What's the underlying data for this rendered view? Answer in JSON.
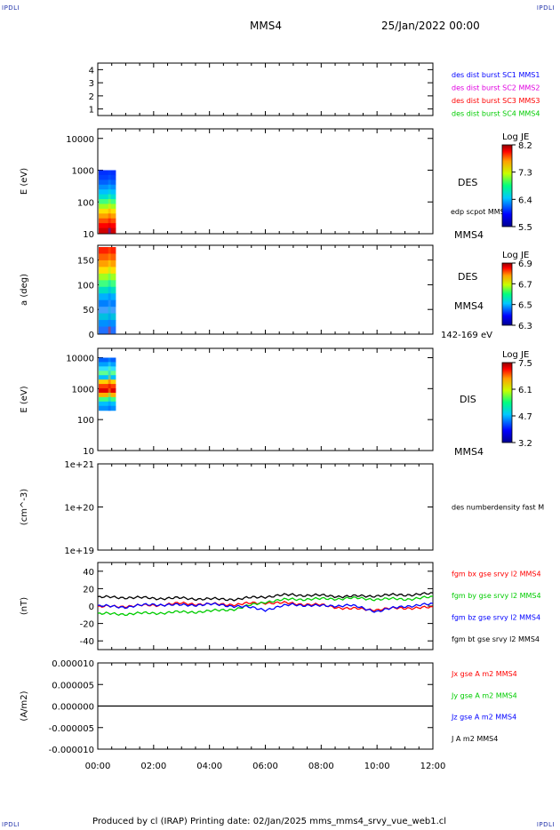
{
  "corner_tag": "IPDLI",
  "header": {
    "spacecraft": "MMS4",
    "datetime": "25/Jan/2022 00:00"
  },
  "footer": {
    "text": "Produced by cl (IRAP)   Printing date: 02/Jan/2025   mms_mms4_srvy_vue_web1.cl"
  },
  "colors": {
    "blue": "#0000ff",
    "magenta": "#e000e0",
    "red": "#ff0000",
    "green": "#00cc00",
    "black": "#000000"
  },
  "chart_data": [
    {
      "type": "line",
      "id": "p1",
      "ylim": [
        0.5,
        4.5
      ],
      "yticks": [
        "1",
        "2",
        "3",
        "4"
      ],
      "legend": [
        {
          "text": "des dist burst SC1 MMS1",
          "color": "#0000ff"
        },
        {
          "text": "des dist burst SC2 MMS2",
          "color": "#e000e0"
        },
        {
          "text": "des dist burst SC3 MMS3",
          "color": "#ff0000"
        },
        {
          "text": "des dist burst SC4 MMS4",
          "color": "#00cc00"
        }
      ]
    },
    {
      "type": "heatmap",
      "id": "p2",
      "ylabel": "E (eV)",
      "scale": "log",
      "ylim": [
        10,
        20000
      ],
      "yticks": [
        "10000",
        "1000",
        "100",
        "10"
      ],
      "side_labels": [
        "DES",
        "edp scpot MMS4",
        "MMS4"
      ],
      "colorbar": {
        "title": "Log JE",
        "ticks": [
          "8.2",
          "7.3",
          "6.4",
          "5.5"
        ]
      },
      "patch": {
        "time_h": [
          0,
          0.65
        ],
        "energy_ev": [
          10,
          1000
        ]
      }
    },
    {
      "type": "heatmap",
      "id": "p3",
      "ylabel": "a (deg)",
      "ylim": [
        0,
        180
      ],
      "yticks": [
        "150",
        "100",
        "50",
        "0"
      ],
      "side_labels": [
        "DES",
        "MMS4",
        "142-169 eV"
      ],
      "colorbar": {
        "title": "Log JE",
        "ticks": [
          "6.9",
          "6.7",
          "6.5",
          "6.3"
        ]
      },
      "patch": {
        "time_h": [
          0,
          0.65
        ],
        "pitch_deg": [
          0,
          180
        ]
      }
    },
    {
      "type": "heatmap",
      "id": "p4",
      "ylabel": "E (eV)",
      "scale": "log",
      "ylim": [
        10,
        20000
      ],
      "yticks": [
        "10000",
        "1000",
        "100",
        "10"
      ],
      "side_labels": [
        "DIS",
        "MMS4"
      ],
      "colorbar": {
        "title": "Log JE",
        "ticks": [
          "7.5",
          "6.1",
          "4.7",
          "3.2"
        ]
      },
      "patch": {
        "time_h": [
          0,
          0.65
        ],
        "energy_ev": [
          200,
          10000
        ]
      }
    },
    {
      "type": "line",
      "id": "p5",
      "ylabel": "(cm^-3)",
      "scale": "log",
      "ylim": [
        1e+19,
        1e+21
      ],
      "yticks": [
        "1e+21",
        "1e+20",
        "1e+19"
      ],
      "legend": [
        {
          "text": "des numberdensity fast M",
          "color": "#000000"
        }
      ]
    },
    {
      "type": "line",
      "id": "p6",
      "ylabel": "(nT)",
      "ylim": [
        -50,
        50
      ],
      "yticks": [
        "40",
        "20",
        "0",
        "-20",
        "-40"
      ],
      "legend": [
        {
          "text": "fgm bx gse srvy l2 MMS4",
          "color": "#ff0000"
        },
        {
          "text": "fgm by gse srvy l2 MMS4",
          "color": "#00cc00"
        },
        {
          "text": "fgm bz gse srvy l2 MMS4",
          "color": "#0000ff"
        },
        {
          "text": "fgm bt gse srvy l2 MMS4",
          "color": "#000000"
        }
      ],
      "x": [
        0,
        1,
        2,
        3,
        4,
        5,
        6,
        7,
        8,
        9,
        10,
        11,
        12
      ],
      "series": [
        {
          "name": "fgm bx gse srvy l2 MMS4",
          "color": "#ff0000",
          "values": [
            -1,
            0,
            1,
            3,
            2,
            2,
            4,
            3,
            1,
            -3,
            -4,
            -2,
            -2
          ]
        },
        {
          "name": "fgm by gse srvy l2 MMS4",
          "color": "#00cc00",
          "values": [
            -9,
            -9,
            -8,
            -7,
            -6,
            -3,
            5,
            8,
            8,
            9,
            8,
            8,
            10
          ]
        },
        {
          "name": "fgm bz gse srvy l2 MMS4",
          "color": "#0000ff",
          "values": [
            0,
            -1,
            2,
            1,
            2,
            0,
            -4,
            2,
            0,
            1,
            -6,
            0,
            2
          ]
        },
        {
          "name": "fgm bt gse srvy l2 MMS4",
          "color": "#000000",
          "values": [
            10,
            10,
            9,
            9,
            8,
            8,
            11,
            13,
            12,
            11,
            12,
            13,
            14
          ]
        }
      ]
    },
    {
      "type": "line",
      "id": "p7",
      "ylabel": "(A/m2)",
      "ylim": [
        -1e-05,
        1e-05
      ],
      "yticks": [
        "0.000010",
        "0.000005",
        "0.000000",
        "-0.000005",
        "-0.000010"
      ],
      "legend": [
        {
          "text": "Jx gse A m2 MMS4",
          "color": "#ff0000"
        },
        {
          "text": "Jy gse A m2 MMS4",
          "color": "#00cc00"
        },
        {
          "text": "Jz gse A m2 MMS4",
          "color": "#0000ff"
        },
        {
          "text": "J A m2 MMS4",
          "color": "#000000"
        }
      ],
      "x": [
        0,
        12
      ],
      "series": [
        {
          "color": "#000000",
          "values": [
            0,
            0
          ]
        }
      ]
    }
  ],
  "x_axis": {
    "ticks": [
      "00:00",
      "02:00",
      "04:00",
      "06:00",
      "08:00",
      "10:00",
      "12:00"
    ],
    "range_h": [
      0,
      12
    ]
  }
}
